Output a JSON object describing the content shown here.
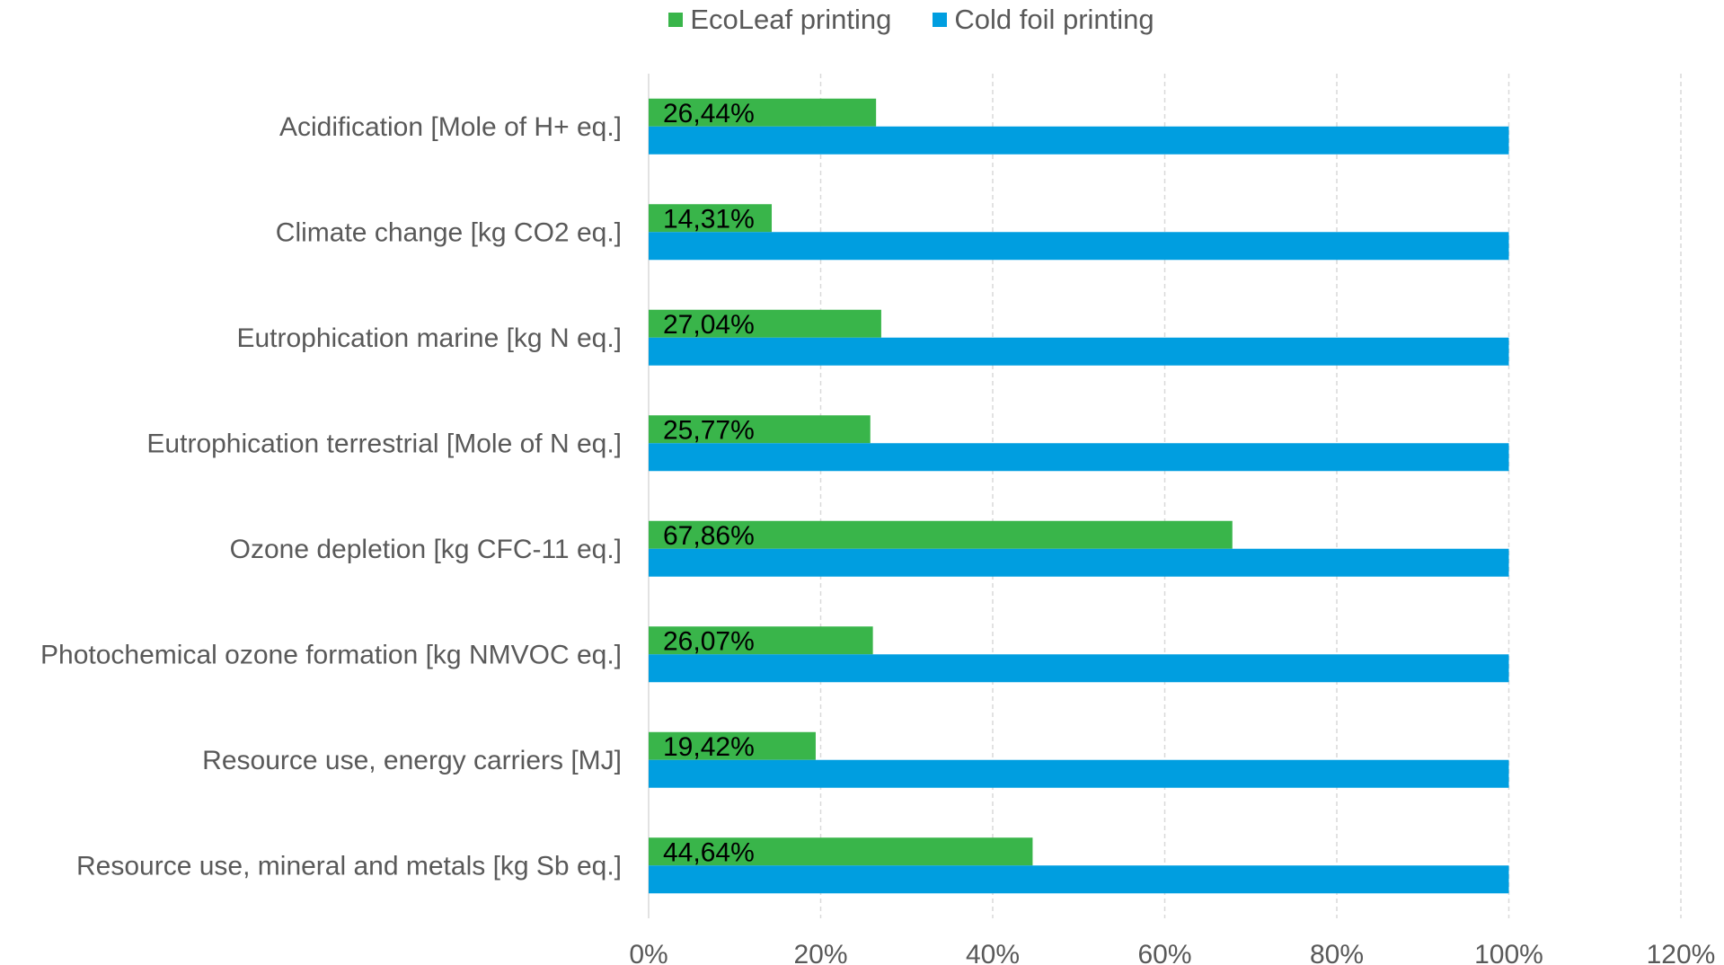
{
  "colors": {
    "ecoleaf": "#39b54a",
    "coldfoil": "#009ee0",
    "grid": "#d9d9d9",
    "text": "#595959"
  },
  "chart_data": {
    "type": "bar",
    "orientation": "horizontal",
    "categories": [
      "Acidification [Mole of H+ eq.]",
      "Climate change [kg CO2 eq.]",
      "Eutrophication marine [kg N eq.]",
      "Eutrophication terrestrial [Mole of N eq.]",
      "Ozone depletion [kg CFC-11 eq.]",
      "Photochemical ozone formation [kg NMVOC eq.]",
      "Resource use, energy carriers [MJ]",
      "Resource use, mineral and metals [kg Sb eq.]"
    ],
    "series": [
      {
        "name": "EcoLeaf printing",
        "color": "#39b54a",
        "values": [
          26.44,
          14.31,
          27.04,
          25.77,
          67.86,
          26.07,
          19.42,
          44.64
        ],
        "data_labels": [
          "26,44%",
          "14,31%",
          "27,04%",
          "25,77%",
          "67,86%",
          "26,07%",
          "19,42%",
          "44,64%"
        ]
      },
      {
        "name": "Cold foil printing",
        "color": "#009ee0",
        "values": [
          100,
          100,
          100,
          100,
          100,
          100,
          100,
          100
        ]
      }
    ],
    "xlim": [
      0,
      120
    ],
    "xticks": [
      0,
      20,
      40,
      60,
      80,
      100,
      120
    ],
    "xtick_labels": [
      "0%",
      "20%",
      "40%",
      "60%",
      "80%",
      "100%",
      "120%"
    ],
    "grid": "vertical dashed",
    "legend_position": "top",
    "title": "",
    "xlabel": "",
    "ylabel": ""
  }
}
